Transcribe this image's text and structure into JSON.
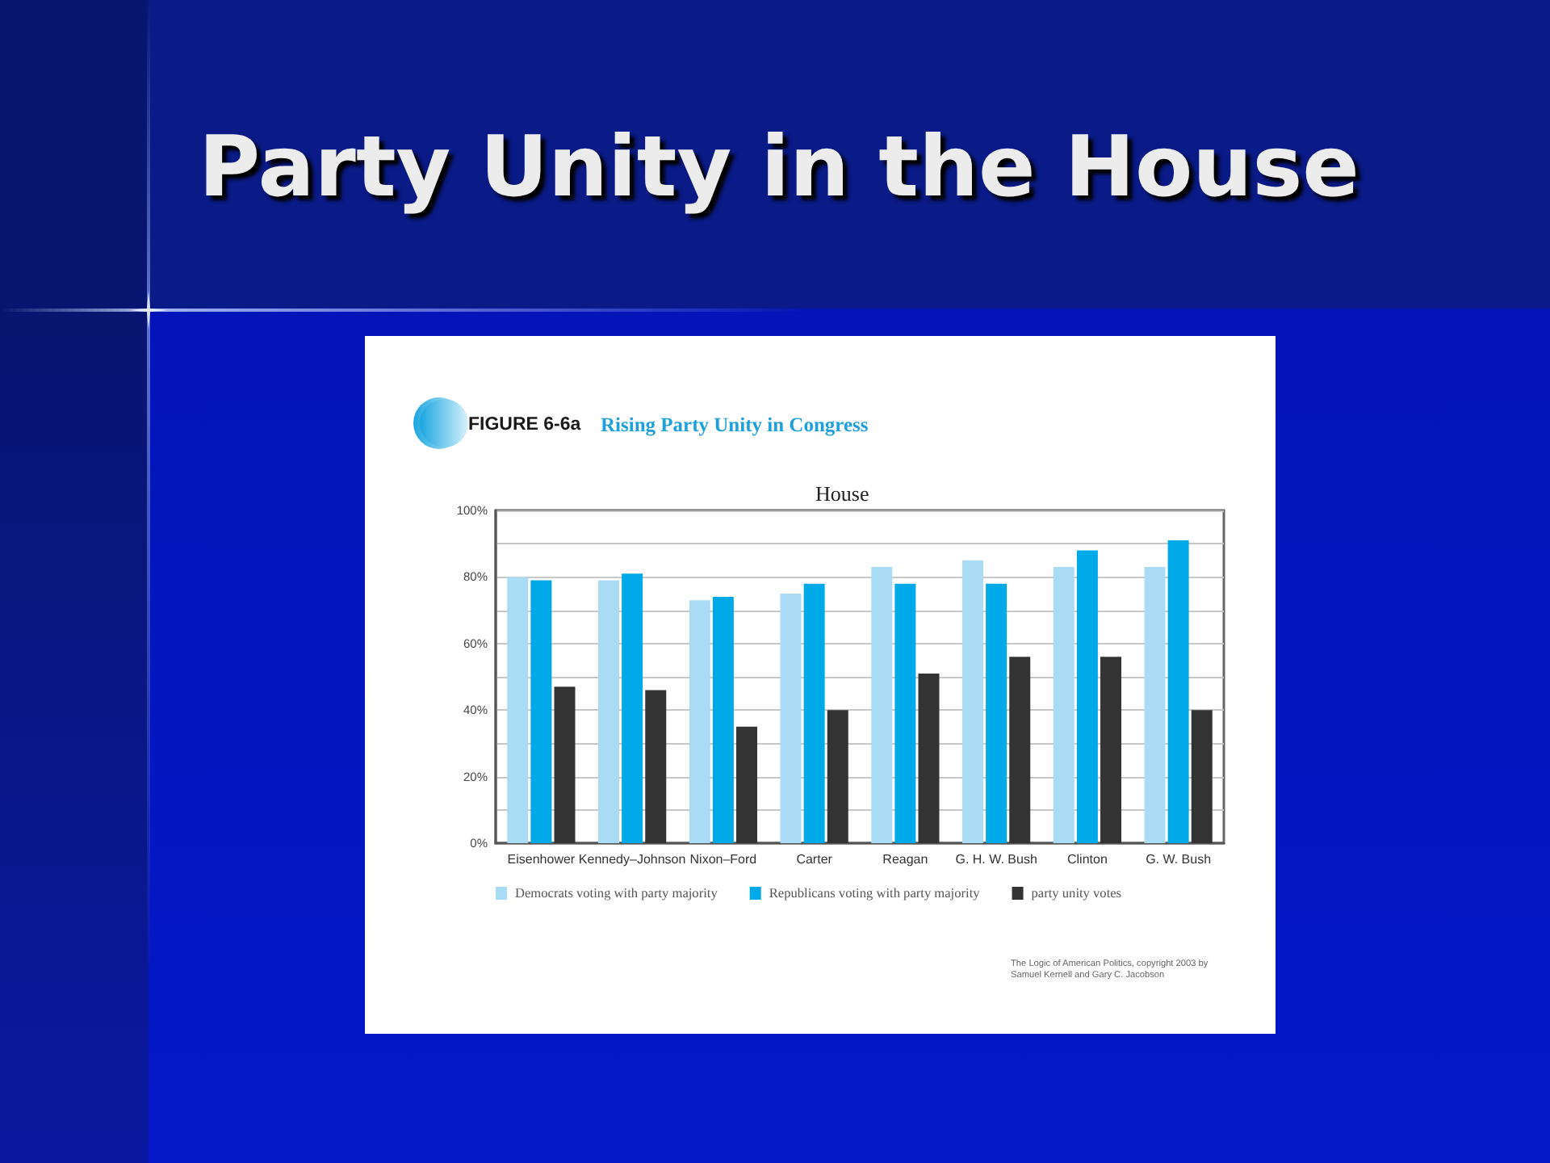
{
  "chart_data": {
    "type": "bar",
    "title": "Party Unity in the House",
    "subtitle": "House",
    "annotations": [
      "FIGURE 6-6a",
      "Rising Party Unity in Congress",
      "The Logic of American Politics, copyright 2003 by Samuel Kernell and Gary C. Jacobson"
    ],
    "categories": [
      "Eisenhower",
      "Kennedy–Johnson",
      "Nixon–Ford",
      "Carter",
      "Reagan",
      "G. H. W. Bush",
      "Clinton",
      "G. W. Bush"
    ],
    "series": [
      {
        "name": "Democrats voting with party majority",
        "color": "#a9dcf4",
        "values": [
          80,
          79,
          73,
          75,
          83,
          85,
          83,
          83
        ]
      },
      {
        "name": "Republicans voting with party majority",
        "color": "#00a9e8",
        "values": [
          79,
          81,
          74,
          78,
          78,
          78,
          88,
          91
        ]
      },
      {
        "name": "party unity votes",
        "color": "#333333",
        "values": [
          47,
          46,
          35,
          40,
          51,
          56,
          56,
          40
        ]
      }
    ],
    "ylim": [
      0,
      100
    ],
    "yticks": [
      {
        "value": 0,
        "label": "0%"
      },
      {
        "value": 10,
        "label": null
      },
      {
        "value": 20,
        "label": "20%"
      },
      {
        "value": 30,
        "label": null
      },
      {
        "value": 40,
        "label": "40%"
      },
      {
        "value": 50,
        "label": null
      },
      {
        "value": 60,
        "label": "60%"
      },
      {
        "value": 70,
        "label": null
      },
      {
        "value": 80,
        "label": "80%"
      },
      {
        "value": 90,
        "label": null
      },
      {
        "value": 100,
        "label": "100%"
      }
    ],
    "grid": "y",
    "legend": "bottom"
  }
}
